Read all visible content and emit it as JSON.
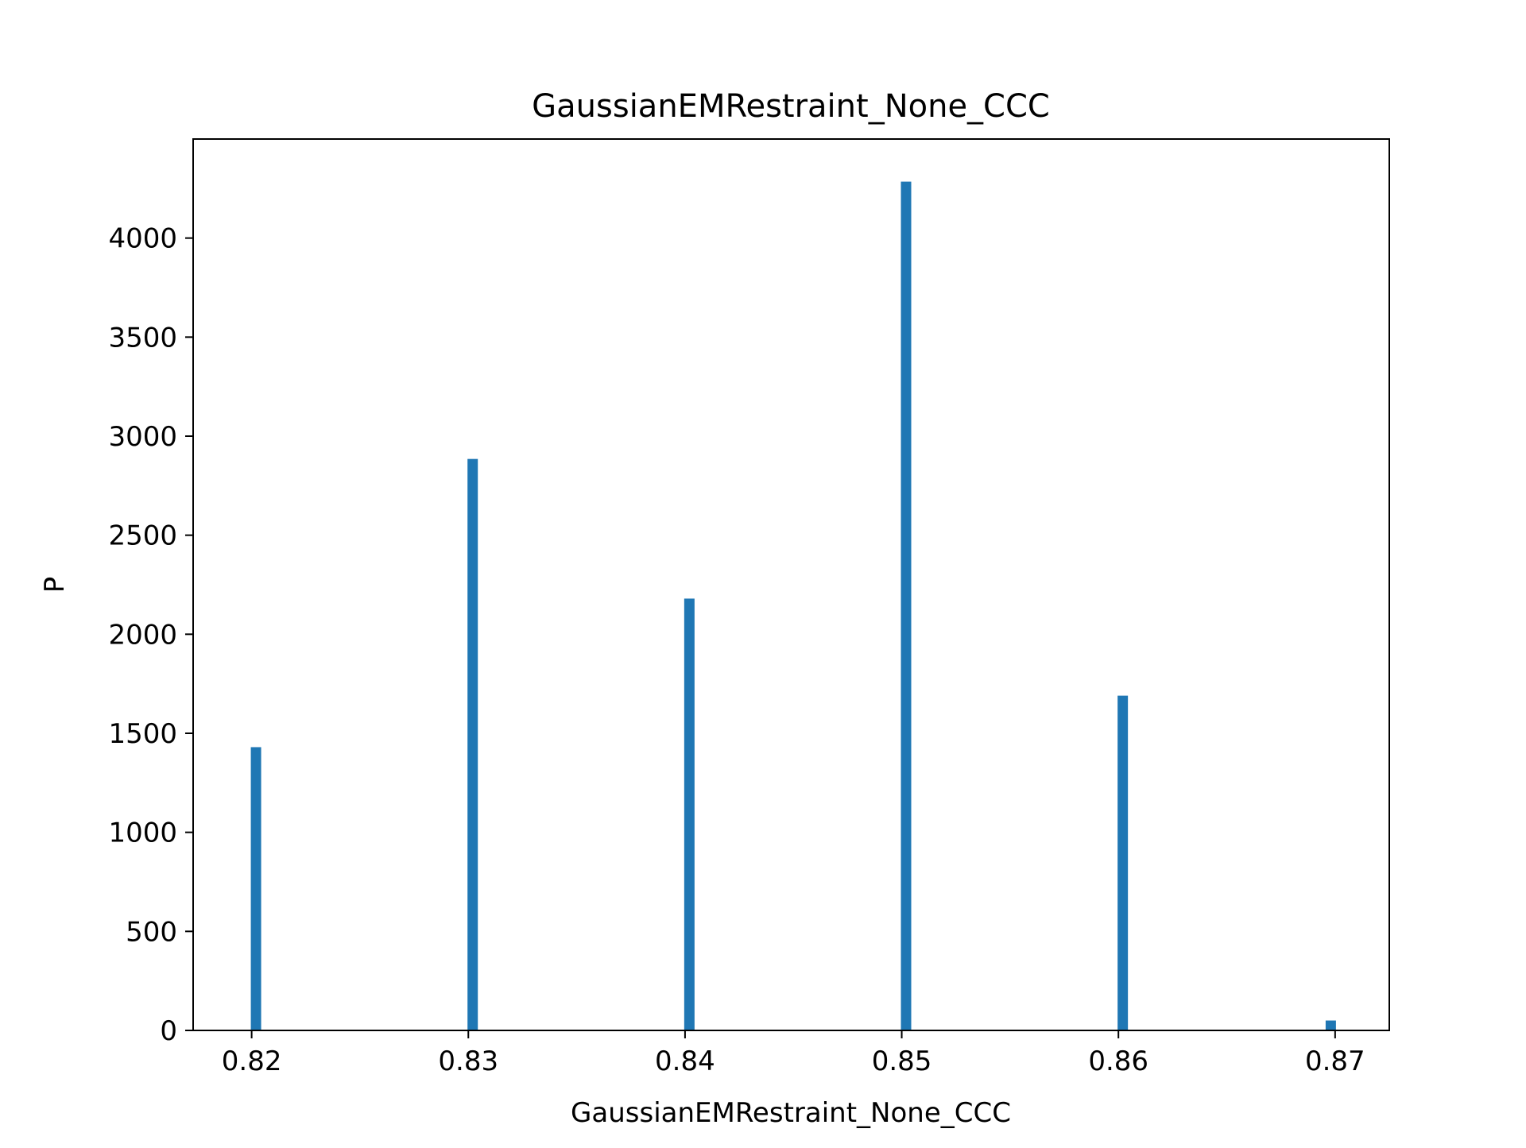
{
  "chart_data": {
    "type": "bar",
    "title": "GaussianEMRestraint_None_CCC",
    "xlabel": "GaussianEMRestraint_None_CCC",
    "ylabel": "P",
    "x": [
      0.8202,
      0.8302,
      0.8402,
      0.8502,
      0.8602,
      0.8698
    ],
    "values": [
      1430,
      2885,
      2180,
      4285,
      1690,
      50
    ],
    "xlim": [
      0.8173,
      0.8725
    ],
    "ylim": [
      0,
      4500
    ],
    "xticks": [
      0.82,
      0.83,
      0.84,
      0.85,
      0.86,
      0.87
    ],
    "xtick_labels": [
      "0.82",
      "0.83",
      "0.84",
      "0.85",
      "0.86",
      "0.87"
    ],
    "yticks": [
      0,
      500,
      1000,
      1500,
      2000,
      2500,
      3000,
      3500,
      4000
    ],
    "ytick_labels": [
      "0",
      "500",
      "1000",
      "1500",
      "2000",
      "2500",
      "3000",
      "3500",
      "4000"
    ],
    "grid": false,
    "bar_color": "#1f77b4"
  }
}
